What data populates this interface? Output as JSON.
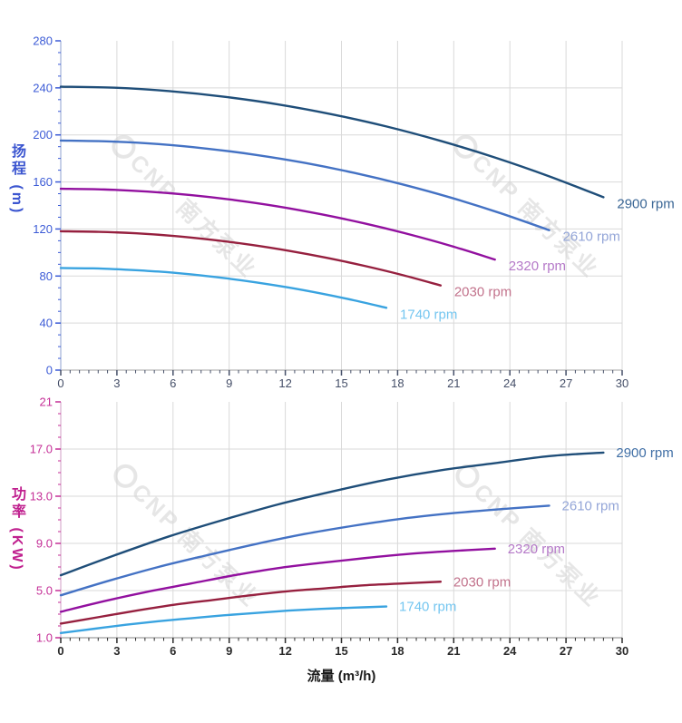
{
  "watermark": {
    "text": "CNP 南方泵业",
    "color": "#d6d6d6"
  },
  "chart_data": [
    {
      "type": "line",
      "name": "head-curve-chart",
      "title": "",
      "xlabel": "",
      "ylabel": "扬程 (m)",
      "x_range": [
        0,
        30
      ],
      "y_range": [
        0,
        280
      ],
      "x_major": 3,
      "x_minor": 0.5,
      "y_major": 40,
      "y_minor": 10,
      "grid": true,
      "x_tick_labels": [
        "0",
        "3",
        "6",
        "9",
        "12",
        "15",
        "18",
        "21",
        "24",
        "27",
        "30"
      ],
      "y_tick_labels": [
        "0",
        "40",
        "80",
        "120",
        "160",
        "200",
        "240",
        "280"
      ],
      "accent_color": "#3c56d0",
      "ytick_color": "#3c5bd6",
      "xtick_color": "#454f68",
      "xtick_bold": false,
      "grid_color": "#d9d9d9",
      "y_axis_line_color": "#a9b7dc",
      "x_axis_line_color": "#b3b3b3",
      "series": [
        {
          "name": "2900 rpm",
          "color": "#1f4e79",
          "label_color": "#3a6695",
          "x": [
            0,
            2.9,
            5.8,
            8.7,
            11.6,
            14.5,
            17.4,
            20.3,
            23.2,
            26.1,
            29
          ],
          "y": [
            241,
            240.1,
            237.2,
            232.5,
            226,
            217.5,
            207.2,
            194.9,
            180.8,
            164.8,
            147
          ]
        },
        {
          "name": "2610 rpm",
          "color": "#4472c4",
          "label_color": "#94a6d8",
          "x": [
            0,
            2.61,
            5.22,
            7.83,
            10.44,
            13.05,
            15.66,
            18.27,
            20.88,
            23.49,
            26.1
          ],
          "y": [
            195.2,
            194.4,
            192.2,
            188.3,
            183,
            176.2,
            167.8,
            157.9,
            146.5,
            133.5,
            119
          ]
        },
        {
          "name": "2320 rpm",
          "color": "#92109f",
          "label_color": "#b579c8",
          "x": [
            0,
            2.32,
            4.64,
            6.96,
            9.28,
            11.6,
            13.92,
            16.24,
            18.56,
            20.88,
            23.2
          ],
          "y": [
            154.2,
            153.6,
            151.8,
            148.8,
            144.6,
            139.2,
            132.5,
            124.7,
            115.7,
            105.5,
            94
          ]
        },
        {
          "name": "2030 rpm",
          "color": "#96203f",
          "label_color": "#c2738c",
          "x": [
            0,
            2.03,
            4.06,
            6.09,
            8.12,
            10.15,
            12.18,
            14.21,
            16.24,
            18.27,
            20.3
          ],
          "y": [
            118.1,
            117.6,
            116.3,
            114,
            110.7,
            106.6,
            101.5,
            95.5,
            88.6,
            80.8,
            72
          ]
        },
        {
          "name": "1740 rpm",
          "color": "#39a3e0",
          "label_color": "#74c6f0",
          "x": [
            0,
            1.74,
            3.48,
            5.22,
            6.96,
            8.7,
            10.44,
            12.18,
            13.92,
            15.66,
            17.4
          ],
          "y": [
            86.8,
            86.5,
            85.4,
            83.8,
            81.4,
            78.3,
            74.6,
            70.2,
            65.1,
            59.4,
            53
          ]
        }
      ]
    },
    {
      "type": "line",
      "name": "power-curve-chart",
      "title": "",
      "xlabel": "流量 (m³/h)",
      "ylabel": "功率 (KW)",
      "x_range": [
        0,
        30
      ],
      "y_range": [
        1,
        21
      ],
      "x_major": 3,
      "x_minor": 0.5,
      "y_major": 4,
      "y_minor": 1,
      "grid": true,
      "x_tick_labels": [
        "0",
        "3",
        "6",
        "9",
        "12",
        "15",
        "18",
        "21",
        "24",
        "27",
        "30"
      ],
      "y_tick_labels": [
        "1.0",
        "5.0",
        "9.0",
        "13.0",
        "17.0",
        "21"
      ],
      "accent_color": "#c0218f",
      "ytick_color": "#c52f97",
      "xtick_color": "#2b2b2b",
      "xtick_bold": true,
      "grid_color": "#d9d9d9",
      "y_axis_line_color": "#dcb4d2",
      "x_axis_line_color": "#9e9e9e",
      "series": [
        {
          "name": "2900 rpm",
          "color": "#1f4e79",
          "label_color": "#3f6ea5",
          "x": [
            0,
            2.9,
            5.8,
            8.7,
            11.6,
            14.5,
            17.4,
            20.3,
            23.2,
            26.1,
            29
          ],
          "y": [
            6.3,
            8.0,
            9.6,
            11.0,
            12.3,
            13.4,
            14.4,
            15.2,
            15.8,
            16.4,
            16.7
          ]
        },
        {
          "name": "2610 rpm",
          "color": "#4472c4",
          "label_color": "#94a6d8",
          "x": [
            0,
            2.61,
            5.22,
            7.83,
            10.44,
            13.05,
            15.66,
            18.27,
            20.88,
            23.49,
            26.1
          ],
          "y": [
            4.6,
            5.85,
            7.0,
            8.0,
            8.95,
            9.8,
            10.5,
            11.1,
            11.55,
            11.9,
            12.2
          ]
        },
        {
          "name": "2320 rpm",
          "color": "#92109f",
          "label_color": "#b579c8",
          "x": [
            0,
            2.32,
            4.64,
            6.96,
            9.28,
            11.6,
            13.92,
            16.24,
            18.56,
            20.88,
            23.2
          ],
          "y": [
            3.2,
            4.1,
            4.9,
            5.6,
            6.3,
            6.9,
            7.35,
            7.75,
            8.1,
            8.35,
            8.55
          ]
        },
        {
          "name": "2030 rpm",
          "color": "#96203f",
          "label_color": "#c2738c",
          "x": [
            0,
            2.03,
            4.06,
            6.09,
            8.12,
            10.15,
            12.18,
            14.21,
            16.24,
            18.27,
            20.3
          ],
          "y": [
            2.2,
            2.75,
            3.3,
            3.8,
            4.2,
            4.6,
            4.95,
            5.2,
            5.45,
            5.6,
            5.75
          ]
        },
        {
          "name": "1740 rpm",
          "color": "#39a3e0",
          "label_color": "#74c6f0",
          "x": [
            0,
            1.74,
            3.48,
            5.22,
            6.96,
            8.7,
            10.44,
            12.18,
            13.92,
            15.66,
            17.4
          ],
          "y": [
            1.4,
            1.75,
            2.1,
            2.4,
            2.65,
            2.9,
            3.1,
            3.3,
            3.45,
            3.55,
            3.65
          ]
        }
      ]
    }
  ]
}
